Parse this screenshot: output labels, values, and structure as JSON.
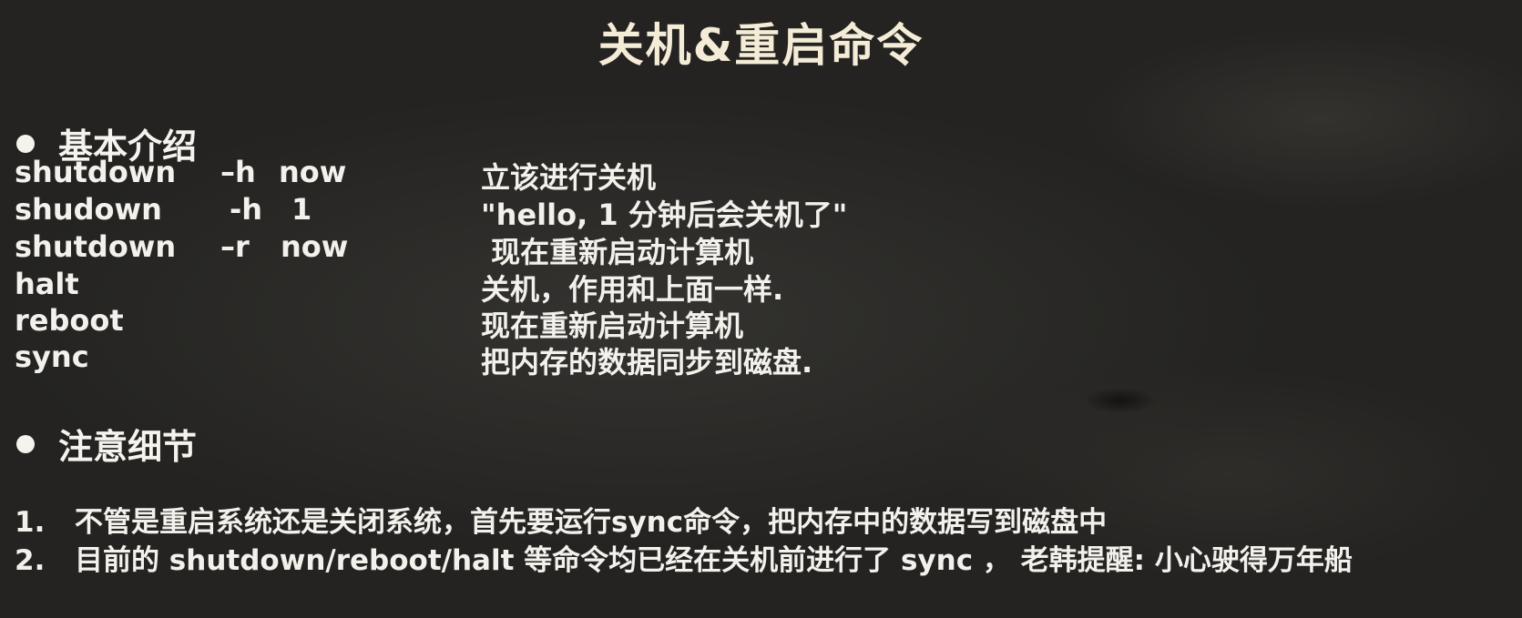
{
  "title": "关机&重启命令",
  "sections": {
    "intro_heading": "基本介绍",
    "notes_heading": "注意细节"
  },
  "commands": [
    {
      "cmd": "shutdown",
      "opt": "–h",
      "arg": "now",
      "desc": "立该进行关机"
    },
    {
      "cmd": "shudown",
      "opt": "-h",
      "arg": "1",
      "desc": "\"hello, 1 分钟后会关机了\""
    },
    {
      "cmd": "shutdown",
      "opt": "–r",
      "arg": "now",
      "desc": " 现在重新启动计算机"
    },
    {
      "cmd": "halt",
      "opt": "",
      "arg": "",
      "desc": "关机，作用和上面一样."
    },
    {
      "cmd": "reboot",
      "opt": "",
      "arg": "",
      "desc": "现在重新启动计算机"
    },
    {
      "cmd": "sync",
      "opt": "",
      "arg": "",
      "desc": "把内存的数据同步到磁盘."
    }
  ],
  "notes": [
    {
      "num": "1.",
      "text": "不管是重启系统还是关闭系统，首先要运行sync命令，把内存中的数据写到磁盘中"
    },
    {
      "num": "2.",
      "text": "目前的 shutdown/reboot/halt 等命令均已经在关机前进行了 sync ， 老韩提醒: 小心驶得万年船"
    }
  ]
}
